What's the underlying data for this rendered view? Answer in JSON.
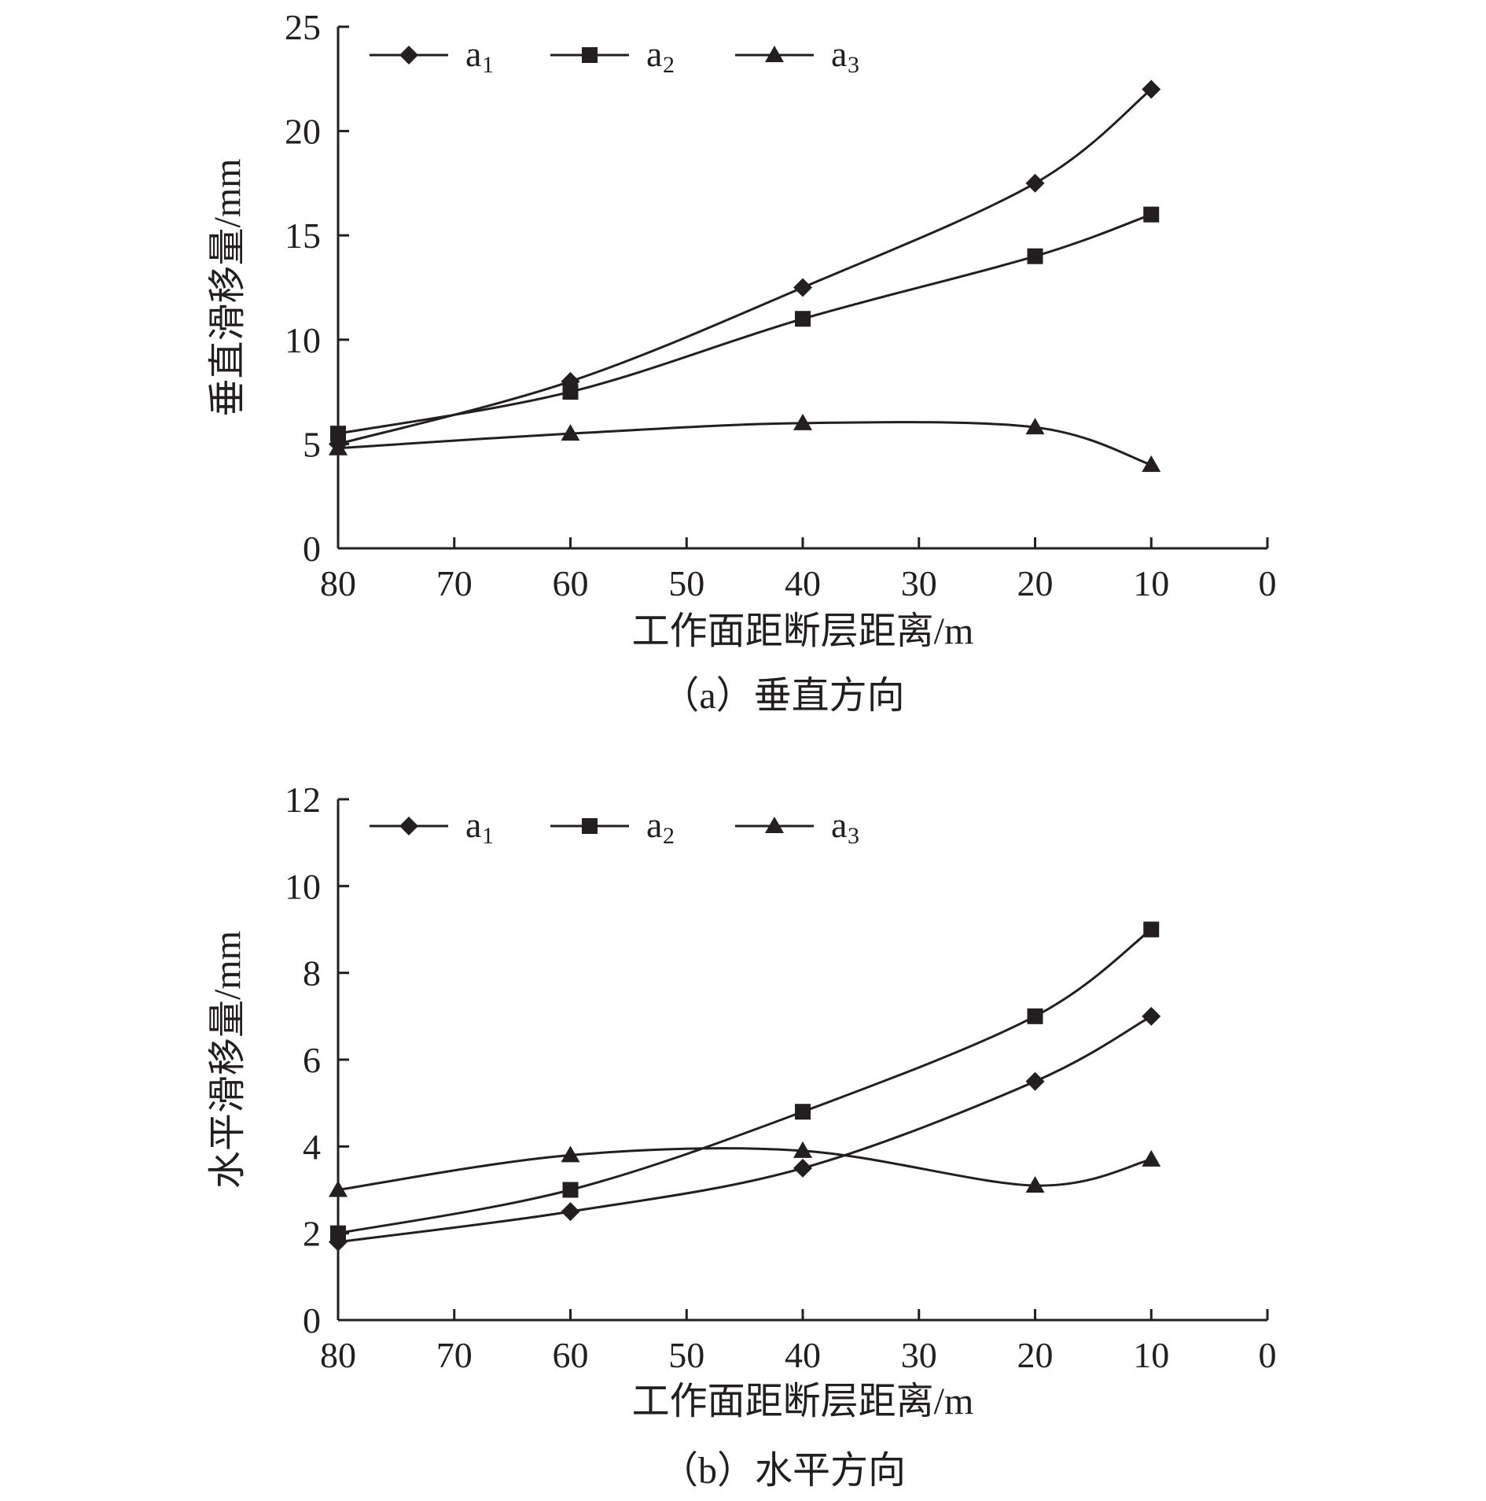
{
  "chart_data": [
    {
      "type": "line",
      "caption": "（a）垂直方向",
      "xlabel": "工作面距断层距离/m",
      "ylabel": "垂直滑移量/mm",
      "xlim": [
        80,
        0
      ],
      "ylim": [
        0,
        25
      ],
      "xticks": [
        80,
        70,
        60,
        50,
        40,
        30,
        20,
        10,
        0
      ],
      "yticks": [
        0,
        5,
        10,
        15,
        20,
        25
      ],
      "legend_position": "top-left",
      "grid": false,
      "series": [
        {
          "name": "a",
          "sub": "1",
          "marker": "diamond",
          "x": [
            80,
            60,
            40,
            20,
            10
          ],
          "y": [
            5.0,
            8.0,
            12.5,
            17.5,
            22.0
          ]
        },
        {
          "name": "a",
          "sub": "2",
          "marker": "square",
          "x": [
            80,
            60,
            40,
            20,
            10
          ],
          "y": [
            5.5,
            7.5,
            11.0,
            14.0,
            16.0
          ]
        },
        {
          "name": "a",
          "sub": "3",
          "marker": "triangle",
          "x": [
            80,
            60,
            40,
            20,
            10
          ],
          "y": [
            4.8,
            5.5,
            6.0,
            5.8,
            4.0
          ]
        }
      ]
    },
    {
      "type": "line",
      "caption": "（b）水平方向",
      "xlabel": "工作面距断层距离/m",
      "ylabel": "水平滑移量/mm",
      "xlim": [
        80,
        0
      ],
      "ylim": [
        0,
        12
      ],
      "xticks": [
        80,
        70,
        60,
        50,
        40,
        30,
        20,
        10,
        0
      ],
      "yticks": [
        0,
        2,
        4,
        6,
        8,
        10,
        12
      ],
      "legend_position": "top-left",
      "grid": false,
      "series": [
        {
          "name": "a",
          "sub": "1",
          "marker": "diamond",
          "x": [
            80,
            60,
            40,
            20,
            10
          ],
          "y": [
            1.8,
            2.5,
            3.5,
            5.5,
            7.0
          ]
        },
        {
          "name": "a",
          "sub": "2",
          "marker": "square",
          "x": [
            80,
            60,
            40,
            20,
            10
          ],
          "y": [
            2.0,
            3.0,
            4.8,
            7.0,
            9.0
          ]
        },
        {
          "name": "a",
          "sub": "3",
          "marker": "triangle",
          "x": [
            80,
            60,
            40,
            20,
            10
          ],
          "y": [
            3.0,
            3.8,
            3.9,
            3.1,
            3.7
          ]
        }
      ]
    }
  ]
}
